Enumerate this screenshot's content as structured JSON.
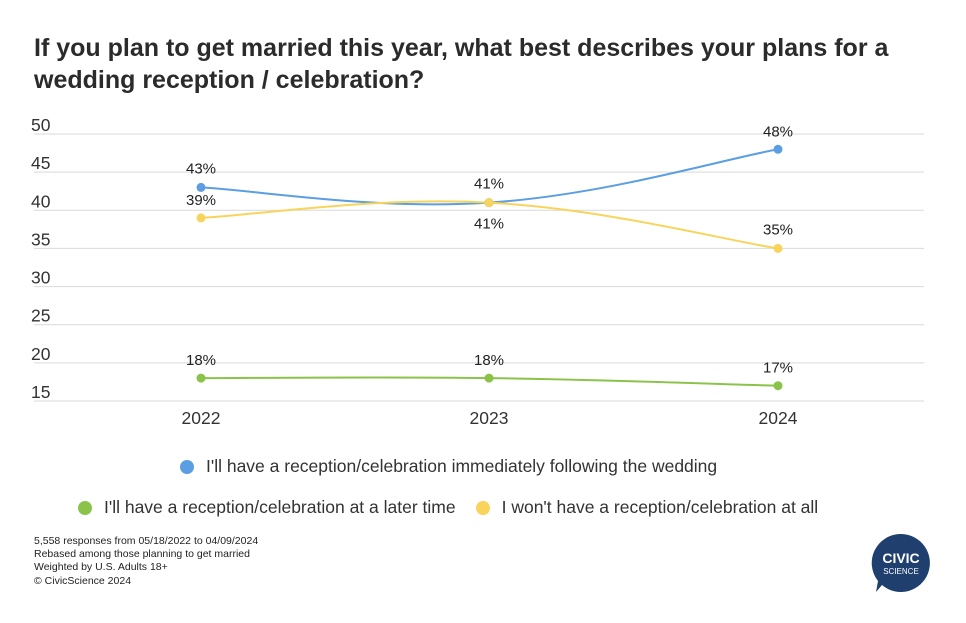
{
  "title": "If you plan to get married this year, what best describes your plans for a wedding reception / celebration?",
  "chart_data": {
    "type": "line",
    "categories": [
      "2022",
      "2023",
      "2024"
    ],
    "ylim": [
      15,
      50
    ],
    "yticks": [
      15,
      20,
      25,
      30,
      35,
      40,
      45,
      50
    ],
    "grid": true,
    "legend_position": "bottom",
    "series": [
      {
        "name": "I'll have a reception/celebration immediately following the wedding",
        "color": "#5b9ee1",
        "values": [
          43,
          41,
          48
        ],
        "labels": [
          "43%",
          "41%",
          "48%"
        ]
      },
      {
        "name": "I'll have a reception/celebration at a later time",
        "color": "#8bc34a",
        "values": [
          18,
          18,
          17
        ],
        "labels": [
          "18%",
          "18%",
          "17%"
        ]
      },
      {
        "name": "I won't have a reception/celebration at all",
        "color": "#f8d45c",
        "values": [
          39,
          41,
          35
        ],
        "labels": [
          "39%",
          "41%",
          "35%"
        ]
      }
    ]
  },
  "footnotes": {
    "line1": "5,558 responses from 05/18/2022 to 04/09/2024",
    "line2": "Rebased among those planning to get married",
    "line3": "Weighted by U.S. Adults 18+",
    "line4": "© CivicScience 2024"
  },
  "logo": {
    "line1": "CIVIC",
    "line2": "SCIENCE",
    "color": "#1f3f6e"
  }
}
